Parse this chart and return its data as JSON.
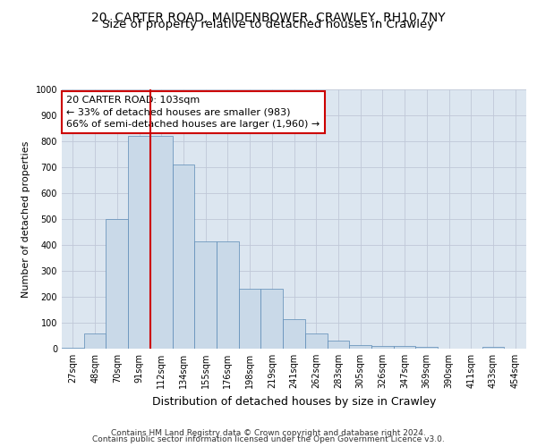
{
  "title_line1": "20, CARTER ROAD, MAIDENBOWER, CRAWLEY, RH10 7NY",
  "title_line2": "Size of property relative to detached houses in Crawley",
  "xlabel": "Distribution of detached houses by size in Crawley",
  "ylabel": "Number of detached properties",
  "bin_labels": [
    "27sqm",
    "48sqm",
    "70sqm",
    "91sqm",
    "112sqm",
    "134sqm",
    "155sqm",
    "176sqm",
    "198sqm",
    "219sqm",
    "241sqm",
    "262sqm",
    "283sqm",
    "305sqm",
    "326sqm",
    "347sqm",
    "369sqm",
    "390sqm",
    "411sqm",
    "433sqm",
    "454sqm"
  ],
  "bar_values": [
    5,
    58,
    500,
    820,
    820,
    710,
    415,
    415,
    230,
    230,
    115,
    57,
    30,
    13,
    12,
    10,
    7,
    0,
    0,
    8,
    0
  ],
  "bar_color": "#c9d9e8",
  "bar_edge_color": "#5a8ab5",
  "bar_edge_width": 0.5,
  "property_bin_index": 3,
  "red_line_color": "#cc0000",
  "annotation_text": "20 CARTER ROAD: 103sqm\n← 33% of detached houses are smaller (983)\n66% of semi-detached houses are larger (1,960) →",
  "annotation_box_color": "#ffffff",
  "annotation_box_edge": "#cc0000",
  "ylim": [
    0,
    1000
  ],
  "yticks": [
    0,
    100,
    200,
    300,
    400,
    500,
    600,
    700,
    800,
    900,
    1000
  ],
  "grid_color": "#c0c8d8",
  "bg_color": "#dce6f0",
  "footer_line1": "Contains HM Land Registry data © Crown copyright and database right 2024.",
  "footer_line2": "Contains public sector information licensed under the Open Government Licence v3.0.",
  "title1_fontsize": 10,
  "title2_fontsize": 9.5,
  "ylabel_fontsize": 8,
  "xlabel_fontsize": 9,
  "tick_fontsize": 7,
  "annotation_fontsize": 8,
  "footer_fontsize": 6.5
}
